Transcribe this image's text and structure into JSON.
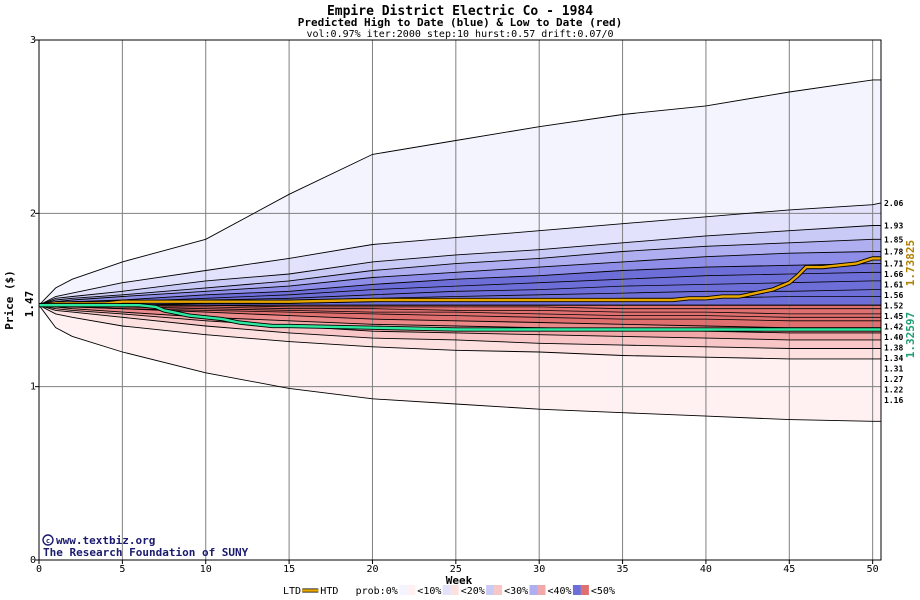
{
  "chart_data": {
    "type": "area",
    "title": "Empire District Electric Co - 1984",
    "subtitle": "Predicted High to Date (blue) &  Low to Date (red)",
    "params": "vol:0.97% iter:2000 step:10 hurst:0.57 drift:0.07/0",
    "xlabel": "Week",
    "ylabel": "Price ($)",
    "xlim": [
      0,
      50.5
    ],
    "ylim": [
      0,
      3
    ],
    "x_ticks": [
      0,
      5,
      10,
      15,
      20,
      25,
      30,
      35,
      40,
      45,
      50
    ],
    "y_ticks": [
      0,
      1,
      2,
      3
    ],
    "grid": true,
    "start_price": 1.47,
    "start_label": "1.47",
    "high_label": "1.73825",
    "low_label": "1.32597",
    "band_labels": [
      "2.06",
      "1.93",
      "1.85",
      "1.78",
      "1.71",
      "1.66",
      "1.61",
      "1.56",
      "1.52",
      "1.45",
      "1.42",
      "1.40",
      "1.38",
      "1.34",
      "1.31",
      "1.27",
      "1.22",
      "1.16"
    ],
    "band_label_values": [
      2.06,
      1.93,
      1.85,
      1.78,
      1.71,
      1.66,
      1.61,
      1.56,
      1.52,
      1.45,
      1.42,
      1.4,
      1.38,
      1.34,
      1.31,
      1.27,
      1.22,
      1.16
    ],
    "band_x": [
      0,
      1,
      2,
      5,
      10,
      15,
      20,
      25,
      30,
      35,
      40,
      45,
      50,
      50.5
    ],
    "upper_envelopes": [
      {
        "prob": 0,
        "values": [
          1.47,
          1.57,
          1.62,
          1.72,
          1.85,
          2.11,
          2.34,
          2.42,
          2.5,
          2.57,
          2.62,
          2.7,
          2.77,
          2.77
        ]
      },
      {
        "prob": 10,
        "values": [
          1.47,
          1.52,
          1.54,
          1.6,
          1.67,
          1.74,
          1.82,
          1.86,
          1.9,
          1.94,
          1.98,
          2.02,
          2.05,
          2.06
        ]
      },
      {
        "prob": 20,
        "values": [
          1.47,
          1.51,
          1.52,
          1.55,
          1.61,
          1.65,
          1.72,
          1.76,
          1.79,
          1.83,
          1.87,
          1.9,
          1.93,
          1.93
        ]
      },
      {
        "prob": 30,
        "values": [
          1.47,
          1.5,
          1.51,
          1.53,
          1.57,
          1.61,
          1.67,
          1.71,
          1.74,
          1.78,
          1.81,
          1.83,
          1.85,
          1.85
        ]
      },
      {
        "prob": 40,
        "values": [
          1.47,
          1.49,
          1.5,
          1.52,
          1.55,
          1.58,
          1.63,
          1.66,
          1.69,
          1.72,
          1.75,
          1.77,
          1.78,
          1.78
        ]
      },
      {
        "prob": 50,
        "values": [
          1.47,
          1.48,
          1.49,
          1.5,
          1.53,
          1.55,
          1.59,
          1.62,
          1.64,
          1.67,
          1.69,
          1.7,
          1.71,
          1.71
        ]
      }
    ],
    "upper_inner_lines": [
      [
        1.47,
        1.48,
        1.48,
        1.49,
        1.51,
        1.53,
        1.56,
        1.58,
        1.6,
        1.62,
        1.64,
        1.65,
        1.66,
        1.66
      ],
      [
        1.47,
        1.47,
        1.48,
        1.48,
        1.5,
        1.51,
        1.53,
        1.55,
        1.56,
        1.58,
        1.59,
        1.6,
        1.61,
        1.61
      ],
      [
        1.47,
        1.47,
        1.47,
        1.48,
        1.49,
        1.5,
        1.51,
        1.52,
        1.53,
        1.54,
        1.55,
        1.55,
        1.56,
        1.56
      ],
      [
        1.47,
        1.47,
        1.47,
        1.47,
        1.48,
        1.48,
        1.49,
        1.5,
        1.5,
        1.51,
        1.51,
        1.52,
        1.52,
        1.52
      ]
    ],
    "lower_envelopes": [
      {
        "prob": 0,
        "values": [
          1.47,
          1.34,
          1.29,
          1.2,
          1.08,
          0.99,
          0.93,
          0.9,
          0.87,
          0.85,
          0.83,
          0.81,
          0.8,
          0.8
        ]
      },
      {
        "prob": 10,
        "values": [
          1.47,
          1.42,
          1.4,
          1.35,
          1.3,
          1.26,
          1.23,
          1.21,
          1.2,
          1.18,
          1.17,
          1.16,
          1.16,
          1.16
        ]
      },
      {
        "prob": 20,
        "values": [
          1.47,
          1.44,
          1.43,
          1.4,
          1.35,
          1.31,
          1.28,
          1.27,
          1.25,
          1.24,
          1.23,
          1.22,
          1.22,
          1.22
        ]
      },
      {
        "prob": 30,
        "values": [
          1.47,
          1.45,
          1.44,
          1.42,
          1.38,
          1.35,
          1.32,
          1.31,
          1.3,
          1.29,
          1.28,
          1.27,
          1.27,
          1.27
        ]
      },
      {
        "prob": 40,
        "values": [
          1.47,
          1.46,
          1.45,
          1.43,
          1.4,
          1.38,
          1.36,
          1.35,
          1.34,
          1.33,
          1.32,
          1.31,
          1.31,
          1.31
        ]
      },
      {
        "prob": 50,
        "values": [
          1.47,
          1.46,
          1.46,
          1.45,
          1.43,
          1.41,
          1.39,
          1.38,
          1.37,
          1.36,
          1.35,
          1.34,
          1.34,
          1.34
        ]
      }
    ],
    "lower_inner_lines": [
      [
        1.47,
        1.46,
        1.46,
        1.45,
        1.44,
        1.43,
        1.42,
        1.41,
        1.4,
        1.39,
        1.39,
        1.38,
        1.38,
        1.38
      ],
      [
        1.47,
        1.47,
        1.46,
        1.46,
        1.45,
        1.44,
        1.43,
        1.43,
        1.42,
        1.41,
        1.41,
        1.4,
        1.4,
        1.4
      ],
      [
        1.47,
        1.47,
        1.47,
        1.46,
        1.46,
        1.45,
        1.45,
        1.44,
        1.44,
        1.43,
        1.43,
        1.42,
        1.42,
        1.42
      ],
      [
        1.47,
        1.47,
        1.47,
        1.47,
        1.47,
        1.46,
        1.46,
        1.46,
        1.46,
        1.45,
        1.45,
        1.45,
        1.45,
        1.45
      ]
    ],
    "series": [
      {
        "name": "HTD",
        "color": "#e8a800",
        "x": [
          0,
          1,
          2,
          3,
          4,
          5,
          6,
          7,
          8,
          10,
          12,
          15,
          20,
          25,
          30,
          35,
          38,
          39,
          40,
          41,
          42,
          42.5,
          43,
          43.5,
          44,
          44.5,
          45,
          45.5,
          46,
          47,
          48,
          49,
          50,
          50.5
        ],
        "values": [
          1.47,
          1.48,
          1.48,
          1.48,
          1.48,
          1.49,
          1.49,
          1.49,
          1.49,
          1.49,
          1.49,
          1.49,
          1.5,
          1.5,
          1.5,
          1.5,
          1.5,
          1.51,
          1.51,
          1.52,
          1.52,
          1.53,
          1.54,
          1.55,
          1.56,
          1.58,
          1.6,
          1.64,
          1.69,
          1.69,
          1.7,
          1.71,
          1.74,
          1.74
        ]
      },
      {
        "name": "LTD",
        "color": "#2ee8a0",
        "x": [
          0,
          1,
          2,
          3,
          4,
          5,
          6,
          7,
          7.5,
          8,
          9,
          10,
          11,
          12,
          13,
          14,
          15,
          20,
          25,
          30,
          35,
          40,
          45,
          50,
          50.5
        ],
        "values": [
          1.47,
          1.47,
          1.47,
          1.47,
          1.47,
          1.47,
          1.47,
          1.46,
          1.44,
          1.43,
          1.41,
          1.4,
          1.39,
          1.37,
          1.36,
          1.35,
          1.35,
          1.34,
          1.33,
          1.33,
          1.33,
          1.33,
          1.33,
          1.33,
          1.33
        ]
      }
    ],
    "legend": {
      "placement": "bottom",
      "items": [
        "LTD",
        "HTD",
        "prob:0%",
        "<10%",
        "<20%",
        "<30%",
        "<40%",
        "<50%"
      ]
    },
    "band_colors": {
      "upper": [
        "#f4f4ff",
        "#e2e2fc",
        "#cacaf6",
        "#aeaef0",
        "#8e8ee8",
        "#6e6ed8"
      ],
      "lower": [
        "#fff1f1",
        "#fde0e0",
        "#f8c6c6",
        "#f2a8a8",
        "#ea8a8a",
        "#e07070"
      ]
    },
    "credits": [
      "www.textbiz.org",
      "The Research Foundation of SUNY"
    ]
  }
}
